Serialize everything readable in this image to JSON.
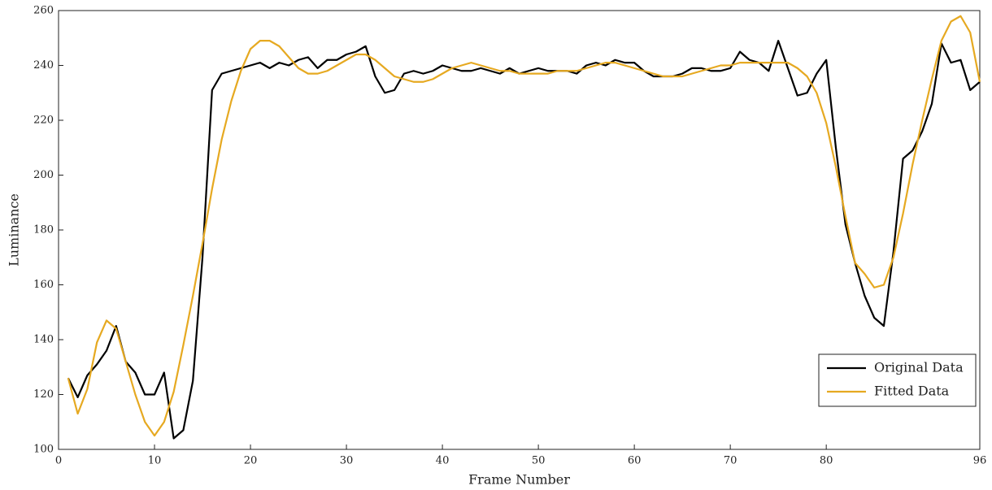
{
  "chart_data": {
    "type": "line",
    "xlabel": "Frame Number",
    "ylabel": "Luminance",
    "x": [
      1,
      2,
      3,
      4,
      5,
      6,
      7,
      8,
      9,
      10,
      11,
      12,
      13,
      14,
      15,
      16,
      17,
      18,
      19,
      20,
      21,
      22,
      23,
      24,
      25,
      26,
      27,
      28,
      29,
      30,
      31,
      32,
      33,
      34,
      35,
      36,
      37,
      38,
      39,
      40,
      41,
      42,
      43,
      44,
      45,
      46,
      47,
      48,
      49,
      50,
      51,
      52,
      53,
      54,
      55,
      56,
      57,
      58,
      59,
      60,
      61,
      62,
      63,
      64,
      65,
      66,
      67,
      68,
      69,
      70,
      71,
      72,
      73,
      74,
      75,
      76,
      77,
      78,
      79,
      80,
      81,
      82,
      83,
      84,
      85,
      86,
      87,
      88,
      89,
      90,
      91,
      92,
      93,
      94,
      95,
      96
    ],
    "series": [
      {
        "name": "Original Data",
        "color": "#000000",
        "values": [
          126,
          119,
          127,
          131,
          136,
          145,
          132,
          128,
          120,
          120,
          128,
          104,
          107,
          125,
          170,
          231,
          237,
          238,
          239,
          240,
          241,
          239,
          241,
          240,
          242,
          243,
          239,
          242,
          242,
          244,
          245,
          247,
          236,
          230,
          231,
          237,
          238,
          237,
          238,
          240,
          239,
          238,
          238,
          239,
          238,
          237,
          239,
          237,
          238,
          239,
          238,
          238,
          238,
          237,
          240,
          241,
          240,
          242,
          241,
          241,
          238,
          236,
          236,
          236,
          237,
          239,
          239,
          238,
          238,
          239,
          245,
          242,
          241,
          238,
          249,
          239,
          229,
          230,
          237,
          242,
          210,
          182,
          168,
          156,
          148,
          145,
          172,
          206,
          209,
          216,
          226,
          248,
          241,
          242,
          231,
          234
        ]
      },
      {
        "name": "Fitted Data",
        "color": "#e6a921",
        "values": [
          126,
          113,
          122,
          139,
          147,
          144,
          132,
          120,
          110,
          105,
          110,
          121,
          138,
          156,
          175,
          195,
          213,
          227,
          238,
          246,
          249,
          249,
          247,
          243,
          239,
          237,
          237,
          238,
          240,
          242,
          244,
          244,
          242,
          239,
          236,
          235,
          234,
          234,
          235,
          237,
          239,
          240,
          241,
          240,
          239,
          238,
          238,
          237,
          237,
          237,
          237,
          238,
          238,
          238,
          239,
          240,
          241,
          241,
          240,
          239,
          238,
          237,
          236,
          236,
          236,
          237,
          238,
          239,
          240,
          240,
          241,
          241,
          241,
          241,
          241,
          241,
          239,
          236,
          230,
          219,
          203,
          185,
          168,
          164,
          159,
          160,
          170,
          186,
          204,
          220,
          235,
          249,
          256,
          258,
          252,
          234
        ]
      }
    ],
    "xlim": [
      0,
      96
    ],
    "xticks": [
      0,
      10,
      20,
      30,
      40,
      50,
      60,
      70,
      80,
      96
    ],
    "ylim": [
      100,
      260
    ],
    "yticks": [
      100,
      120,
      140,
      160,
      180,
      200,
      220,
      240,
      260
    ],
    "grid": false,
    "legend": "lower right"
  }
}
